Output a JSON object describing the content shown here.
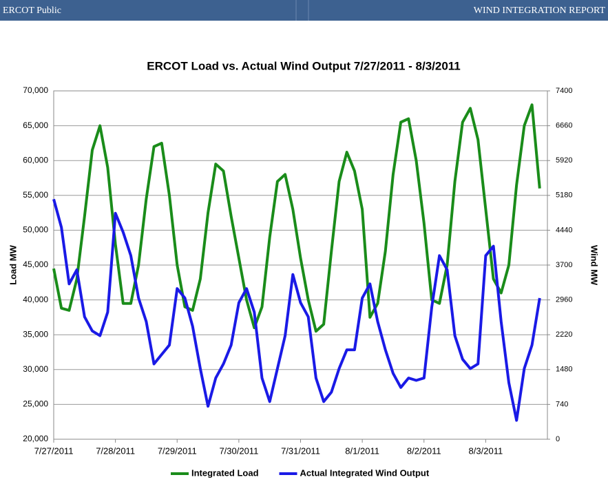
{
  "header": {
    "left": "ERCOT Public",
    "right": "WIND INTEGRATION REPORT"
  },
  "chart_data": {
    "type": "line",
    "title": "ERCOT Load vs. Actual Wind Output 7/27/2011 - 8/3/2011",
    "y_label": "Load MW",
    "y2_label": "Wind MW",
    "categories": [
      "7/27/2011",
      null,
      null,
      null,
      null,
      null,
      null,
      null,
      "7/28/2011",
      null,
      null,
      null,
      null,
      null,
      null,
      null,
      "7/29/2011",
      null,
      null,
      null,
      null,
      null,
      null,
      null,
      "7/30/2011",
      null,
      null,
      null,
      null,
      null,
      null,
      null,
      "7/31/2011",
      null,
      null,
      null,
      null,
      null,
      null,
      null,
      "8/1/2011",
      null,
      null,
      null,
      null,
      null,
      null,
      null,
      "8/2/2011",
      null,
      null,
      null,
      null,
      null,
      null,
      null,
      "8/3/2011",
      null,
      null,
      null,
      null,
      null,
      null,
      null
    ],
    "series": [
      {
        "name": "Integrated Load",
        "color": "#1a8c1a",
        "values": [
          44500,
          38800,
          38500,
          43000,
          52000,
          61500,
          65000,
          59000,
          48000,
          39500,
          39500,
          45000,
          54500,
          62000,
          62500,
          55000,
          45000,
          39000,
          38500,
          43000,
          52500,
          59500,
          58500,
          52000,
          46000,
          40000,
          36000,
          39000,
          49000,
          57000,
          58000,
          53000,
          46000,
          40000,
          35500,
          36500,
          47000,
          57000,
          61200,
          58500,
          53000,
          37500,
          39500,
          47000,
          58000,
          65500,
          66000,
          60000,
          51000,
          40000,
          39500,
          45000,
          57000,
          65500,
          67500,
          63000,
          53000,
          43000,
          41000,
          45000,
          56500,
          65000,
          68000,
          56000
        ]
      },
      {
        "name": "Actual Integrated Wind Output",
        "color": "#1a1ae6",
        "axis": "y2",
        "values": [
          5100,
          4500,
          3300,
          3600,
          2600,
          2300,
          2200,
          2700,
          4800,
          4400,
          3900,
          3000,
          2500,
          1600,
          1800,
          2000,
          3200,
          3000,
          2400,
          1500,
          700,
          1300,
          1600,
          2000,
          2900,
          3200,
          2700,
          1300,
          800,
          1500,
          2200,
          3500,
          2900,
          2600,
          1300,
          800,
          1000,
          1500,
          1900,
          1900,
          3000,
          3300,
          2500,
          1900,
          1400,
          1100,
          1300,
          1250,
          1300,
          2800,
          3900,
          3600,
          2200,
          1700,
          1500,
          1600,
          3900,
          4100,
          2500,
          1200,
          400,
          1500,
          2000,
          3000
        ]
      }
    ],
    "ylim": [
      20000,
      70000
    ],
    "yticks": [
      {
        "value": 20000,
        "label": "20,000"
      },
      {
        "value": 25000,
        "label": "25,000"
      },
      {
        "value": 30000,
        "label": "30,000"
      },
      {
        "value": 35000,
        "label": "35,000"
      },
      {
        "value": 40000,
        "label": "40,000"
      },
      {
        "value": 45000,
        "label": "45,000"
      },
      {
        "value": 50000,
        "label": "50,000"
      },
      {
        "value": 55000,
        "label": "55,000"
      },
      {
        "value": 60000,
        "label": "60,000"
      },
      {
        "value": 65000,
        "label": "65,000"
      },
      {
        "value": 70000,
        "label": "70,000"
      }
    ],
    "y2lim": [
      0,
      7400
    ],
    "y2ticks": [
      0,
      740,
      1480,
      2220,
      2960,
      3700,
      4440,
      5180,
      5920,
      6660,
      7400
    ],
    "grid": true,
    "legend": "bottom"
  }
}
